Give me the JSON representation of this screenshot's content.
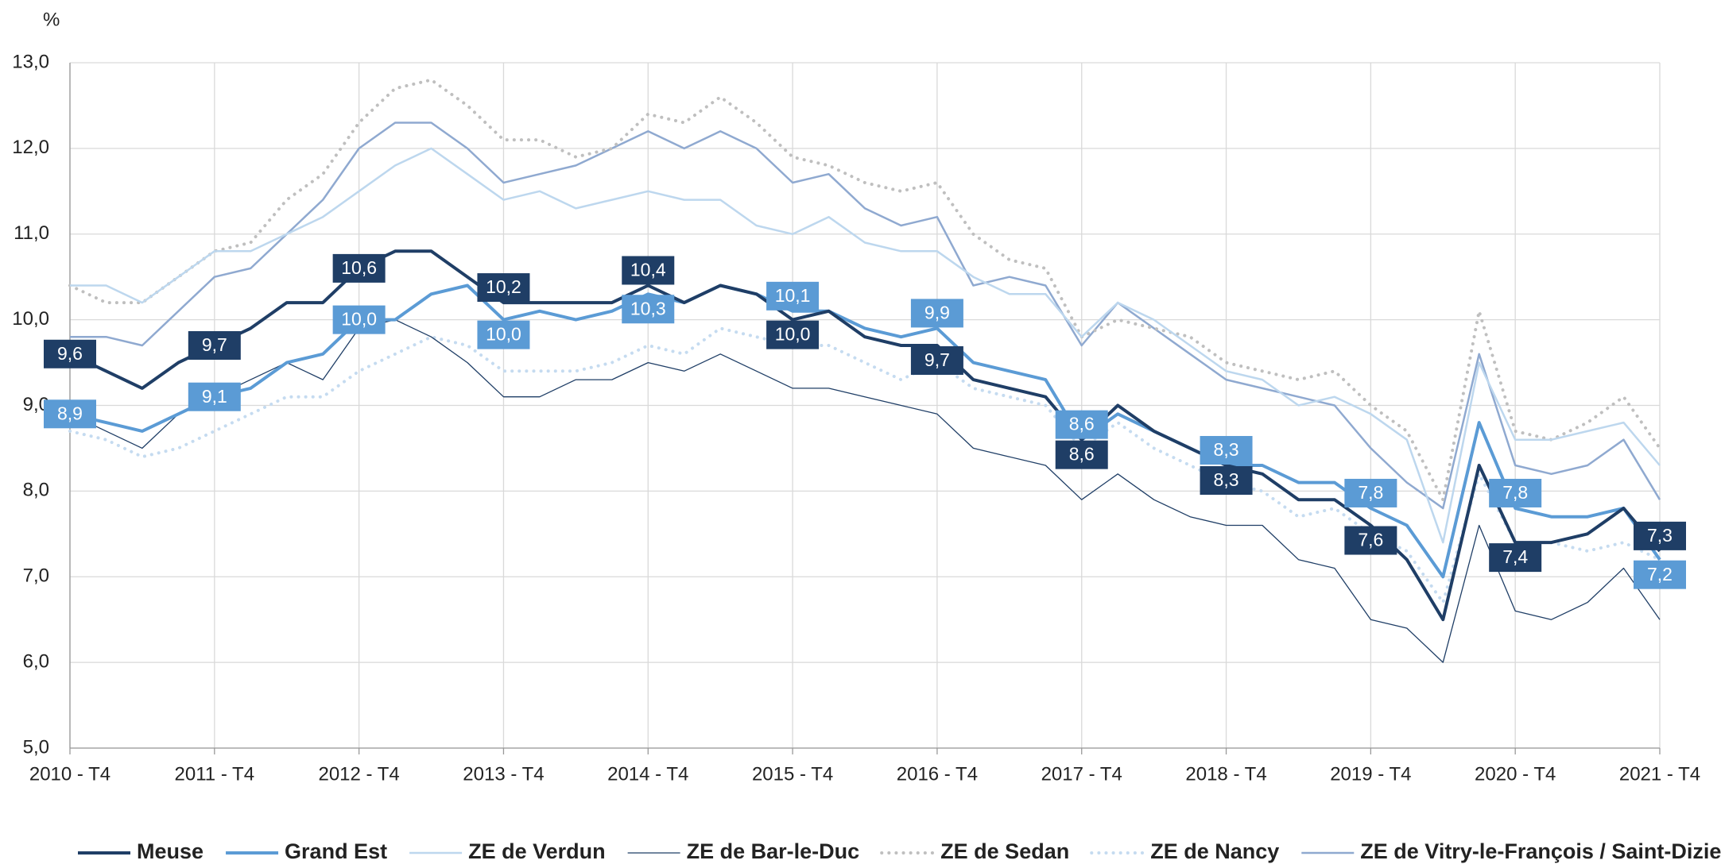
{
  "chart_data": {
    "type": "line",
    "y_unit": "%",
    "categories": [
      "2010 - T4",
      null,
      null,
      null,
      "2011 - T4",
      null,
      null,
      null,
      "2012 - T4",
      null,
      null,
      null,
      "2013 - T4",
      null,
      null,
      null,
      "2014 - T4",
      null,
      null,
      null,
      "2015 - T4",
      null,
      null,
      null,
      "2016 - T4",
      null,
      null,
      null,
      "2017 - T4",
      null,
      null,
      null,
      "2018 - T4",
      null,
      null,
      null,
      "2019 - T4",
      null,
      null,
      null,
      "2020 - T4",
      null,
      null,
      null,
      "2021 - T4"
    ],
    "ylim": [
      5,
      13
    ],
    "yticks": [
      {
        "value": 5,
        "label": "5,0"
      },
      {
        "value": 6,
        "label": "6,0"
      },
      {
        "value": 7,
        "label": "7,0"
      },
      {
        "value": 8,
        "label": "8,0"
      },
      {
        "value": 9,
        "label": "9,0"
      },
      {
        "value": 10,
        "label": "10,0"
      },
      {
        "value": 11,
        "label": "11,0"
      },
      {
        "value": 12,
        "label": "12,0"
      },
      {
        "value": 13,
        "label": "13,0"
      }
    ],
    "grid": true,
    "legend": "bottom",
    "series": [
      {
        "name": "Meuse",
        "color": "#1f3e66",
        "width": 4,
        "dashed": false,
        "values": [
          9.6,
          9.4,
          9.2,
          9.5,
          9.7,
          9.9,
          10.2,
          10.2,
          10.6,
          10.8,
          10.8,
          10.5,
          10.2,
          10.2,
          10.2,
          10.2,
          10.4,
          10.2,
          10.4,
          10.3,
          10.0,
          10.1,
          9.8,
          9.7,
          9.7,
          9.3,
          9.2,
          9.1,
          8.6,
          9.0,
          8.7,
          8.5,
          8.3,
          8.2,
          7.9,
          7.9,
          7.6,
          7.2,
          6.5,
          8.3,
          7.4,
          7.4,
          7.5,
          7.8,
          7.3
        ],
        "value_labels": [
          "9,6",
          null,
          null,
          null,
          "9,7",
          null,
          null,
          null,
          "10,6",
          null,
          null,
          null,
          "10,2",
          null,
          null,
          null,
          "10,4",
          null,
          null,
          null,
          "10,0",
          null,
          null,
          null,
          "9,7",
          null,
          null,
          null,
          "8,6",
          null,
          null,
          null,
          "8,3",
          null,
          null,
          null,
          "7,6",
          null,
          null,
          null,
          "7,4",
          null,
          null,
          null,
          "7,3"
        ]
      },
      {
        "name": "Grand Est",
        "color": "#5b9bd5",
        "width": 4,
        "dashed": false,
        "values": [
          8.9,
          8.8,
          8.7,
          8.9,
          9.1,
          9.2,
          9.5,
          9.6,
          10.0,
          10.0,
          10.3,
          10.4,
          10.0,
          10.1,
          10.0,
          10.1,
          10.3,
          10.2,
          10.4,
          10.3,
          10.1,
          10.1,
          9.9,
          9.8,
          9.9,
          9.5,
          9.4,
          9.3,
          8.6,
          8.9,
          8.7,
          8.5,
          8.3,
          8.3,
          8.1,
          8.1,
          7.8,
          7.6,
          7.0,
          8.8,
          7.8,
          7.7,
          7.7,
          7.8,
          7.2
        ],
        "value_labels": [
          "8,9",
          null,
          null,
          null,
          "9,1",
          null,
          null,
          null,
          "10,0",
          null,
          null,
          null,
          "10,0",
          null,
          null,
          null,
          "10,3",
          null,
          null,
          null,
          "10,1",
          null,
          null,
          null,
          "9,9",
          null,
          null,
          null,
          "8,6",
          null,
          null,
          null,
          "8,3",
          null,
          null,
          null,
          "7,8",
          null,
          null,
          null,
          "7,8",
          null,
          null,
          null,
          "7,2"
        ]
      },
      {
        "name": "ZE de Verdun",
        "color": "#bdd7ee",
        "width": 2.5,
        "dashed": false,
        "values": [
          10.4,
          10.4,
          10.2,
          10.5,
          10.8,
          10.8,
          11.0,
          11.2,
          11.5,
          11.8,
          12.0,
          11.7,
          11.4,
          11.5,
          11.3,
          11.4,
          11.5,
          11.4,
          11.4,
          11.1,
          11.0,
          11.2,
          10.9,
          10.8,
          10.8,
          10.5,
          10.3,
          10.3,
          9.8,
          10.2,
          10.0,
          9.7,
          9.4,
          9.3,
          9.0,
          9.1,
          8.9,
          8.6,
          7.4,
          9.5,
          8.6,
          8.6,
          8.7,
          8.8,
          8.3
        ]
      },
      {
        "name": "ZE de Bar-le-Duc",
        "color": "#1f3e66",
        "width": 1.3,
        "dashed": false,
        "values": [
          8.9,
          8.7,
          8.5,
          8.9,
          9.1,
          9.3,
          9.5,
          9.3,
          9.9,
          10.0,
          9.8,
          9.5,
          9.1,
          9.1,
          9.3,
          9.3,
          9.5,
          9.4,
          9.6,
          9.4,
          9.2,
          9.2,
          9.1,
          9.0,
          8.9,
          8.5,
          8.4,
          8.3,
          7.9,
          8.2,
          7.9,
          7.7,
          7.6,
          7.6,
          7.2,
          7.1,
          6.5,
          6.4,
          6.0,
          7.6,
          6.6,
          6.5,
          6.7,
          7.1,
          6.5
        ]
      },
      {
        "name": "ZE de Sedan",
        "color": "#bfbfbf",
        "width": 4,
        "dashed": true,
        "values": [
          10.4,
          10.2,
          10.2,
          10.5,
          10.8,
          10.9,
          11.4,
          11.7,
          12.3,
          12.7,
          12.8,
          12.5,
          12.1,
          12.1,
          11.9,
          12.0,
          12.4,
          12.3,
          12.6,
          12.3,
          11.9,
          11.8,
          11.6,
          11.5,
          11.6,
          11.0,
          10.7,
          10.6,
          9.8,
          10.0,
          9.9,
          9.8,
          9.5,
          9.4,
          9.3,
          9.4,
          9.0,
          8.7,
          7.9,
          10.1,
          8.7,
          8.6,
          8.8,
          9.1,
          8.5
        ]
      },
      {
        "name": "ZE de Nancy",
        "color": "#c5dbf0",
        "width": 4,
        "dashed": true,
        "values": [
          8.7,
          8.6,
          8.4,
          8.5,
          8.7,
          8.9,
          9.1,
          9.1,
          9.4,
          9.6,
          9.8,
          9.7,
          9.4,
          9.4,
          9.4,
          9.5,
          9.7,
          9.6,
          9.9,
          9.8,
          9.7,
          9.7,
          9.5,
          9.3,
          9.5,
          9.2,
          9.1,
          9.0,
          8.5,
          8.8,
          8.5,
          8.3,
          8.1,
          8.0,
          7.7,
          7.8,
          7.5,
          7.3,
          6.7,
          8.2,
          7.4,
          7.4,
          7.3,
          7.4,
          7.2
        ]
      },
      {
        "name": "ZE de Vitry-le-François / Saint-Dizier",
        "color": "#8fa9d0",
        "width": 2.5,
        "dashed": false,
        "values": [
          9.8,
          9.8,
          9.7,
          10.1,
          10.5,
          10.6,
          11.0,
          11.4,
          12.0,
          12.3,
          12.3,
          12.0,
          11.6,
          11.7,
          11.8,
          12.0,
          12.2,
          12.0,
          12.2,
          12.0,
          11.6,
          11.7,
          11.3,
          11.1,
          11.2,
          10.4,
          10.5,
          10.4,
          9.7,
          10.2,
          9.9,
          9.6,
          9.3,
          9.2,
          9.1,
          9.0,
          8.5,
          8.1,
          7.8,
          9.6,
          8.3,
          8.2,
          8.3,
          8.6,
          7.9
        ]
      }
    ]
  }
}
